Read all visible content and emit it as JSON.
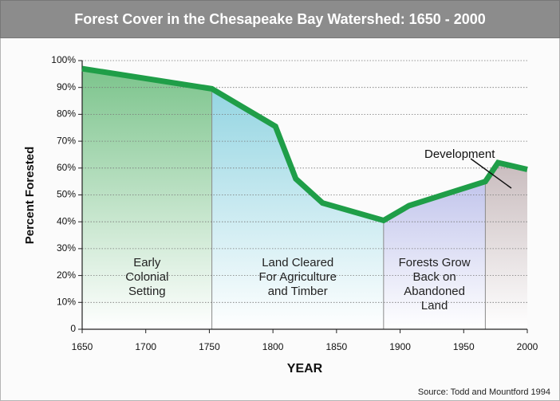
{
  "chart_data": {
    "type": "line",
    "title": "Forest Cover in the Chesapeake Bay Watershed: 1650 - 2000",
    "x_label": "YEAR",
    "y_label": "Percent Forested",
    "source": "Source: Todd and Mountford 1994",
    "x": [
      1650,
      1752,
      1802,
      1818,
      1839,
      1887,
      1907,
      1967,
      1977,
      2000
    ],
    "series": [
      {
        "name": "Percent Forested",
        "color": "#1f9e48",
        "values": [
          97,
          89.5,
          75.5,
          56,
          47,
          40.5,
          46,
          55,
          62,
          59.5
        ]
      }
    ],
    "xlim": [
      1650,
      2000
    ],
    "ylim": [
      0,
      100
    ],
    "xticks": [
      1650,
      1700,
      1750,
      1800,
      1850,
      1900,
      1950,
      2000
    ],
    "yticks": [
      0,
      {
        "value": 10,
        "label": "10%"
      },
      {
        "value": 20,
        "label": "20%"
      },
      {
        "value": 30,
        "label": "30%"
      },
      {
        "value": 40,
        "label": "40%"
      },
      {
        "value": 50,
        "label": "50%"
      },
      {
        "value": 60,
        "label": "60%"
      },
      {
        "value": 70,
        "label": "70%"
      },
      {
        "value": 80,
        "label": "80%"
      },
      {
        "value": 90,
        "label": "90%"
      },
      {
        "value": 100,
        "label": "100%"
      }
    ],
    "grid": true,
    "regions": [
      {
        "x": [
          1650,
          1752
        ],
        "color": "#7cc48c",
        "label": [
          "Early",
          "Colonial",
          "Setting"
        ]
      },
      {
        "x": [
          1752,
          1887
        ],
        "color": "#94d5e2",
        "label": [
          "Land Cleared",
          "For Agriculture",
          "and Timber"
        ]
      },
      {
        "x": [
          1887,
          1967
        ],
        "color": "#c2c5ec",
        "label": [
          "Forests Grow",
          "Back on",
          "Abandoned",
          "Land"
        ]
      },
      {
        "x": [
          1967,
          2000
        ],
        "color": "#c9bcbe",
        "label": []
      }
    ],
    "annotations": [
      {
        "text": "Development"
      }
    ]
  }
}
